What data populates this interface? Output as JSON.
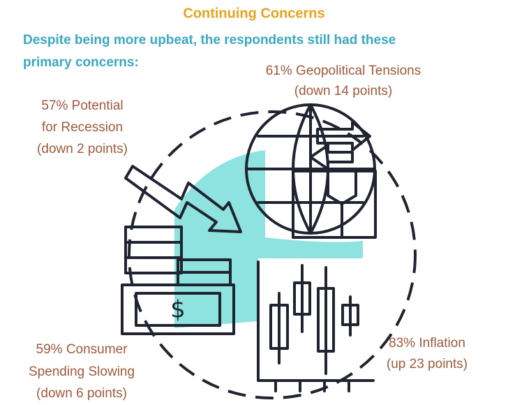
{
  "header": {
    "title": "Continuing Concerns",
    "subtitle_lines": [
      "Despite being more upbeat, the respondents still had these",
      "primary concerns:"
    ]
  },
  "concerns": [
    {
      "lines": [
        "61% Geopolitical Tensions",
        "(down 14 points)"
      ]
    },
    {
      "lines": [
        "57% Potential",
        "for Recession",
        "(down 2 points)"
      ]
    },
    {
      "lines": [
        "59% Consumer",
        "Spending Slowing",
        "(down 6 points)"
      ]
    },
    {
      "lines": [
        "83% Inflation",
        "(up 23 points)"
      ]
    }
  ]
}
